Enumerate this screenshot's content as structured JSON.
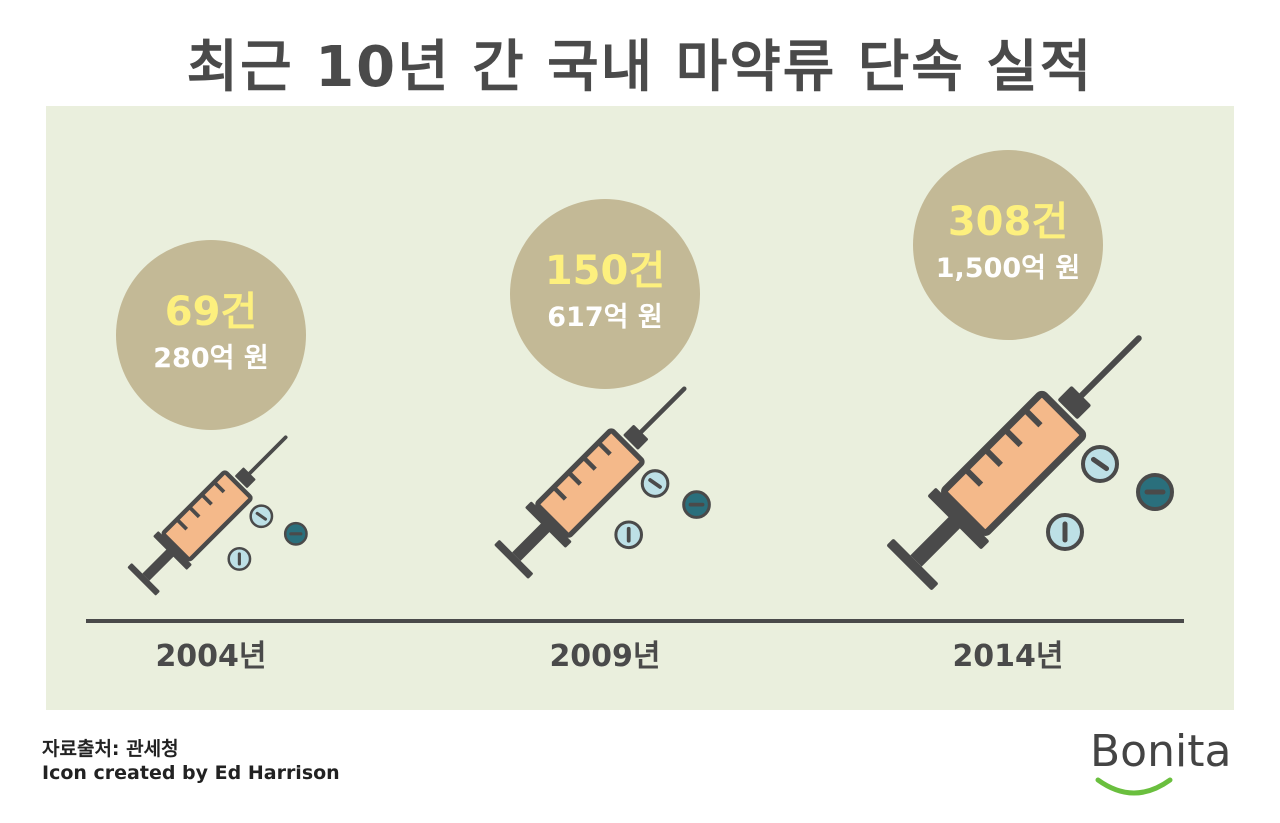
{
  "chart_data": {
    "type": "bar",
    "title": "최근 10년 간 국내 마약류 단속 실적",
    "categories": [
      "2004년",
      "2009년",
      "2014년"
    ],
    "series": [
      {
        "values": [
          69,
          150,
          308
        ],
        "labels": [
          "69건",
          "150건",
          "308건"
        ]
      },
      {
        "values": [
          280,
          617,
          1500
        ],
        "labels": [
          "280억 원",
          "617억 원",
          "1,500억 원"
        ]
      }
    ]
  },
  "colors": {
    "panel": "#eaefdd",
    "bubble": "#c3b996",
    "count_text": "#fdf07e",
    "amount_text": "#ffffff",
    "barrel": "#f4b98a",
    "dark": "#4a4a4a",
    "pill_light": "#bde0e6",
    "pill_dark": "#2a6f7c",
    "logo_smile": "#6abf3e"
  },
  "icons": [
    "syringe-icon",
    "pill-icon"
  ],
  "footer": {
    "source": "자료출처: 관세청",
    "credit": "Icon created by Ed Harrison"
  },
  "logo": {
    "text": "Bonita"
  }
}
